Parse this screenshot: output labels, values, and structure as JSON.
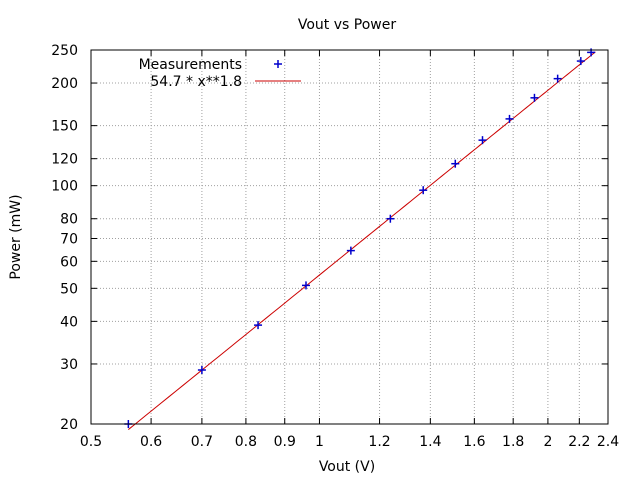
{
  "chart_data": {
    "type": "scatter",
    "title": "Vout vs Power",
    "xlabel": "Vout (V)",
    "ylabel": "Power (mW)",
    "x_scale": "log",
    "y_scale": "log",
    "xlim": [
      0.5,
      2.4
    ],
    "ylim": [
      20,
      250
    ],
    "x_ticks": [
      0.5,
      0.6,
      0.7,
      0.8,
      0.9,
      1,
      1.2,
      1.4,
      1.6,
      1.8,
      2,
      2.2,
      2.4
    ],
    "x_tick_labels": [
      "0.5",
      "0.6",
      "0.7",
      "0.8",
      "0.9",
      "1",
      "1.2",
      "1.4",
      "1.6",
      "1.8",
      "2",
      "2.2",
      "2.4"
    ],
    "y_ticks": [
      20,
      30,
      40,
      50,
      60,
      70,
      80,
      100,
      120,
      150,
      200,
      250
    ],
    "y_tick_labels": [
      "20",
      "30",
      "40",
      "50",
      "60",
      "70",
      "80",
      "100",
      "120",
      "150",
      "200",
      "250"
    ],
    "grid": true,
    "legend_position": "top-left",
    "series": [
      {
        "name": "Measurements",
        "kind": "points",
        "marker": "plus",
        "color": "#0000cc",
        "points": [
          {
            "x": 0.56,
            "y": 20
          },
          {
            "x": 0.7,
            "y": 28.8
          },
          {
            "x": 0.83,
            "y": 39
          },
          {
            "x": 0.96,
            "y": 51
          },
          {
            "x": 1.1,
            "y": 64.5
          },
          {
            "x": 1.24,
            "y": 80
          },
          {
            "x": 1.37,
            "y": 97
          },
          {
            "x": 1.51,
            "y": 116
          },
          {
            "x": 1.64,
            "y": 136
          },
          {
            "x": 1.78,
            "y": 157
          },
          {
            "x": 1.92,
            "y": 181
          },
          {
            "x": 2.06,
            "y": 206
          },
          {
            "x": 2.21,
            "y": 232
          },
          {
            "x": 2.28,
            "y": 246
          }
        ]
      },
      {
        "name": "54.7 * x**1.8",
        "kind": "function",
        "coefficient": 54.7,
        "exponent": 1.8,
        "color": "#cc0000",
        "x_range": [
          0.56,
          2.31
        ]
      }
    ]
  }
}
